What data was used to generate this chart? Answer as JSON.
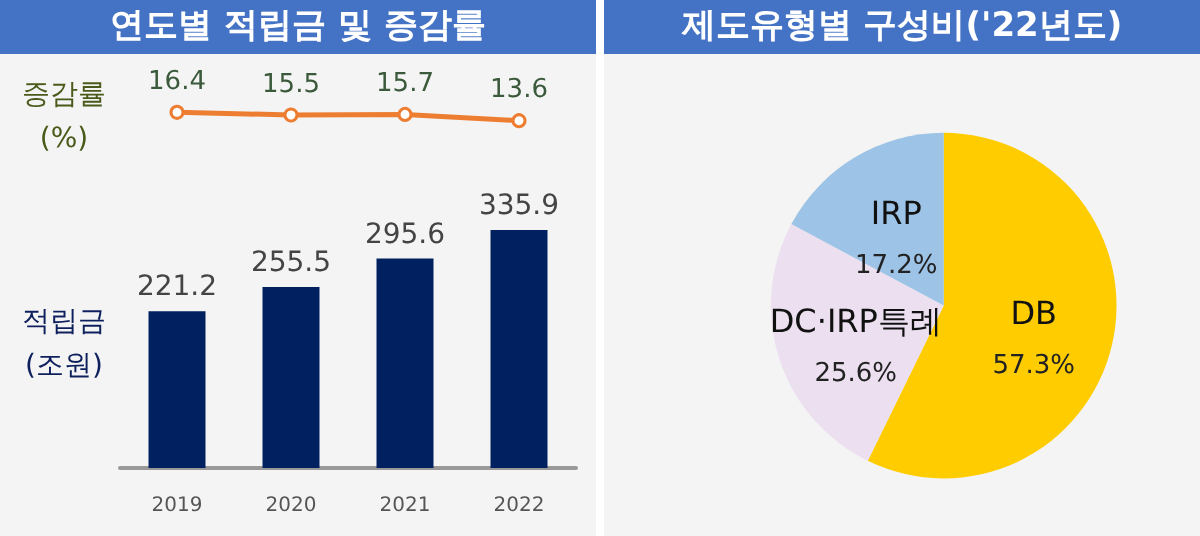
{
  "chart_data": [
    {
      "type": "line",
      "title": "연도별 적립금 및 증감률",
      "ylabel": "증감률\n(%)",
      "categories": [
        "2019",
        "2020",
        "2021",
        "2022"
      ],
      "tick_labels": false,
      "marker": "circle",
      "series": [
        {
          "color": "#ed7d31",
          "values": [
            16.4,
            15.5,
            15.7,
            13.6
          ]
        }
      ],
      "data_labels": true
    },
    {
      "type": "bar",
      "ylabel": "적립금\n(조원)",
      "categories": [
        "2019",
        "2020",
        "2021",
        "2022"
      ],
      "tick_labels": "x",
      "series": [
        {
          "color": "#002060",
          "values": [
            221.2,
            255.5,
            295.6,
            335.9
          ]
        }
      ],
      "data_labels": true
    },
    {
      "type": "pie",
      "title": "제도유형별 구성비('22년도)",
      "categories": [
        "DB",
        "DC·IRP특례",
        "IRP"
      ],
      "values": [
        57.3,
        25.6,
        17.2
      ],
      "value_labels": [
        "57.3%",
        "25.6%",
        "17.2%"
      ],
      "colors": [
        "#ffcc00",
        "#ebdff0",
        "#9dc3e6"
      ]
    }
  ]
}
